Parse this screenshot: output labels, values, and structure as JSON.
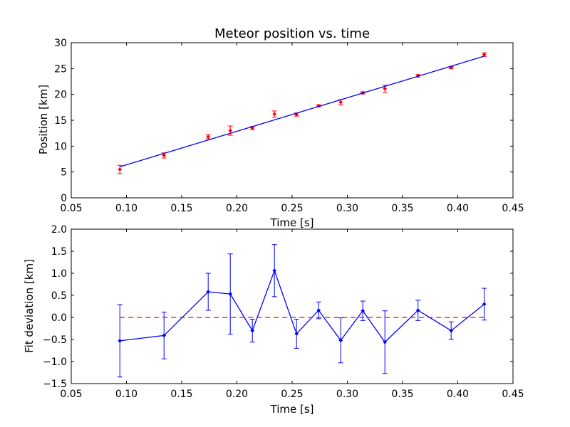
{
  "chart_data": [
    {
      "type": "scatter",
      "title": "Meteor position vs. time",
      "xlabel": "Time [s]",
      "ylabel": "Position [km]",
      "xlim": [
        0.05,
        0.45
      ],
      "ylim": [
        0,
        30
      ],
      "xticks": [
        "0.05",
        "0.10",
        "0.15",
        "0.20",
        "0.25",
        "0.30",
        "0.35",
        "0.40",
        "0.45"
      ],
      "yticks": [
        "0",
        "5",
        "10",
        "15",
        "20",
        "25",
        "30"
      ],
      "grid": false,
      "series": [
        {
          "style": "points-with-errorbars",
          "color": "#ff0000",
          "x": [
            0.094,
            0.134,
            0.174,
            0.194,
            0.214,
            0.234,
            0.254,
            0.274,
            0.294,
            0.314,
            0.334,
            0.364,
            0.394,
            0.424
          ],
          "y": [
            5.5,
            8.2,
            11.8,
            13.0,
            13.5,
            16.2,
            16.1,
            17.8,
            18.5,
            20.3,
            21.1,
            23.6,
            25.2,
            27.7
          ],
          "err": [
            0.8,
            0.5,
            0.4,
            0.9,
            0.3,
            0.6,
            0.3,
            0.2,
            0.5,
            0.2,
            0.7,
            0.25,
            0.2,
            0.35
          ]
        },
        {
          "style": "line",
          "color": "#0000ff",
          "x": [
            0.094,
            0.424
          ],
          "y": [
            6.0,
            27.4
          ]
        }
      ]
    },
    {
      "type": "line",
      "xlabel": "Time [s]",
      "ylabel": "Fit deviation [km]",
      "xlim": [
        0.05,
        0.45
      ],
      "ylim": [
        -1.5,
        2.0
      ],
      "xticks": [
        "0.05",
        "0.10",
        "0.15",
        "0.20",
        "0.25",
        "0.30",
        "0.35",
        "0.40",
        "0.45"
      ],
      "yticks": [
        "−1.5",
        "−1.0",
        "−0.5",
        "0.0",
        "0.5",
        "1.0",
        "1.5",
        "2.0"
      ],
      "grid": false,
      "series": [
        {
          "style": "line-with-errorbars",
          "color": "#0000ff",
          "x": [
            0.094,
            0.134,
            0.174,
            0.194,
            0.214,
            0.234,
            0.254,
            0.274,
            0.294,
            0.314,
            0.334,
            0.364,
            0.394,
            0.424
          ],
          "y": [
            -0.53,
            -0.41,
            0.58,
            0.53,
            -0.3,
            1.06,
            -0.37,
            0.16,
            -0.52,
            0.15,
            -0.56,
            0.16,
            -0.3,
            0.3
          ],
          "err": [
            0.82,
            0.53,
            0.42,
            0.91,
            0.26,
            0.59,
            0.33,
            0.19,
            0.51,
            0.22,
            0.71,
            0.23,
            0.2,
            0.36
          ]
        },
        {
          "style": "dashed-line",
          "color": "#ff0000",
          "x": [
            0.094,
            0.424
          ],
          "y": [
            0.0,
            0.0
          ]
        }
      ]
    }
  ]
}
